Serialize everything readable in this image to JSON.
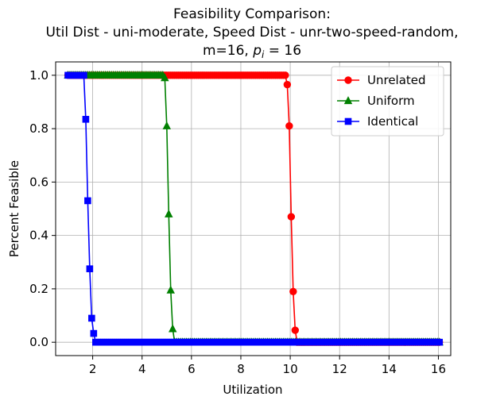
{
  "chart_data": {
    "type": "line",
    "title_lines": [
      "Feasibility Comparison:",
      "Util Dist - uni-moderate, Speed Dist - unr-two-speed-random,"
    ],
    "title_line3_prefix": "m=16, ",
    "title_line3_math": "p",
    "title_line3_math_sub": "i",
    "title_line3_suffix": " = 16",
    "xlabel": "Utilization",
    "ylabel": "Percent Feasible",
    "xlim": [
      0.5,
      16.5
    ],
    "ylim": [
      -0.05,
      1.05
    ],
    "xticks": [
      2,
      4,
      6,
      8,
      10,
      12,
      14,
      16
    ],
    "yticks": [
      0.0,
      0.2,
      0.4,
      0.6,
      0.8,
      1.0
    ],
    "xtick_labels": [
      "2",
      "4",
      "6",
      "8",
      "10",
      "12",
      "14",
      "16"
    ],
    "ytick_labels": [
      "0.0",
      "0.2",
      "0.4",
      "0.6",
      "0.8",
      "1.0"
    ],
    "grid": true,
    "legend_position": "top-right",
    "x_start": 1.0,
    "x_end": 16.0,
    "x_step": 0.08,
    "series": [
      {
        "name": "Unrelated",
        "color": "#ff0000",
        "marker": "circle",
        "plateau_until": 9.8,
        "transition": [
          [
            9.88,
            0.965
          ],
          [
            9.96,
            0.81
          ],
          [
            10.04,
            0.47
          ],
          [
            10.12,
            0.19
          ],
          [
            10.2,
            0.045
          ],
          [
            10.28,
            0.0
          ]
        ]
      },
      {
        "name": "Uniform",
        "color": "#008000",
        "marker": "triangle",
        "plateau_until": 4.84,
        "transition": [
          [
            4.92,
            0.99
          ],
          [
            5.0,
            0.81
          ],
          [
            5.08,
            0.48
          ],
          [
            5.16,
            0.195
          ],
          [
            5.24,
            0.05
          ],
          [
            5.32,
            0.0
          ]
        ]
      },
      {
        "name": "Identical",
        "color": "#0000ff",
        "marker": "square",
        "plateau_until": 1.64,
        "transition": [
          [
            1.72,
            0.835
          ],
          [
            1.8,
            0.53
          ],
          [
            1.88,
            0.275
          ],
          [
            1.96,
            0.09
          ],
          [
            2.04,
            0.033
          ],
          [
            2.12,
            0.0
          ]
        ]
      }
    ]
  }
}
